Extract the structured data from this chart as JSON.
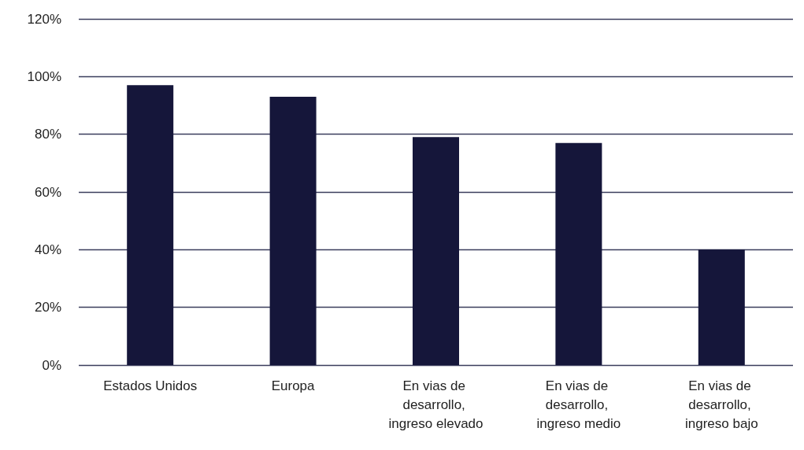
{
  "chart_data": {
    "type": "bar",
    "categories": [
      "Estados Unidos",
      "Europa",
      "En vias de desarrollo, ingreso elevado",
      "En vias de desarrollo, ingreso medio",
      "En vias de desarrollo, ingreso bajo"
    ],
    "values": [
      0.97,
      0.93,
      0.79,
      0.77,
      0.4
    ],
    "color": "#15163a",
    "ylim": [
      0,
      1.2
    ],
    "yticks": [
      {
        "value": 0,
        "label": "0%"
      },
      {
        "value": 0.2,
        "label": "20%"
      },
      {
        "value": 0.4,
        "label": "40%"
      },
      {
        "value": 0.6,
        "label": "60%"
      },
      {
        "value": 0.8,
        "label": "80%"
      },
      {
        "value": 1.0,
        "label": "100%"
      },
      {
        "value": 1.2,
        "label": "120%"
      }
    ],
    "grid": "y"
  }
}
